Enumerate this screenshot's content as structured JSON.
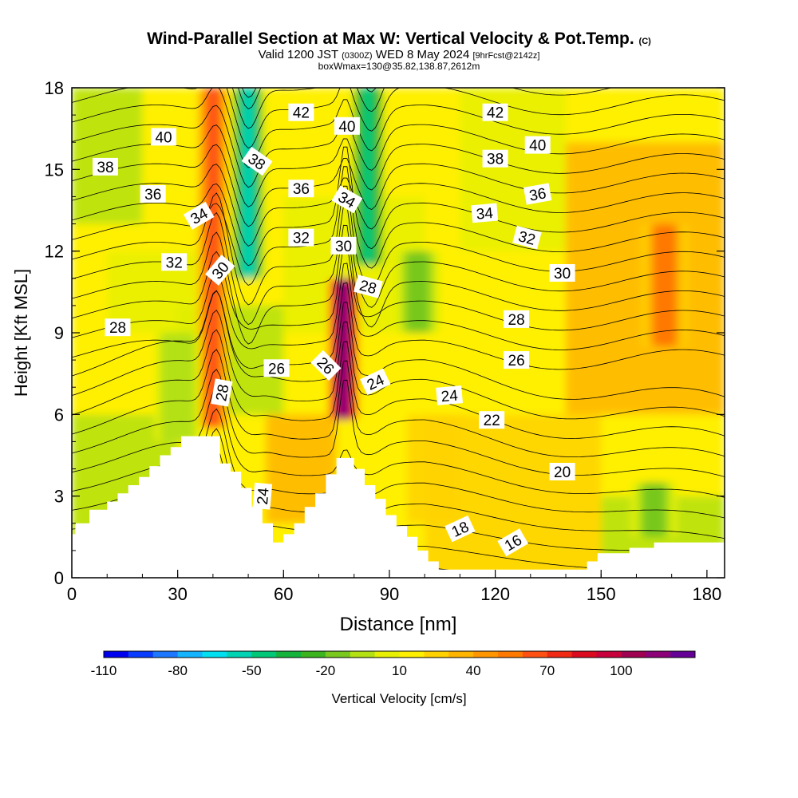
{
  "header": {
    "title": "Wind-Parallel Section at Max W: Vertical Velocity & Pot.Temp.",
    "title_mark": "(C)",
    "valid_prefix": "Valid 1200 JST",
    "valid_utc": "(0300Z)",
    "valid_date": "WED 8 May 2024",
    "forecast_info": "[9hrFcst@2142z]",
    "box_info": "boxWmax=130@35.82,138.87,2612m"
  },
  "chart_data": {
    "type": "heatmap",
    "title": "Wind-Parallel Section at Max W: Vertical Velocity & Pot.Temp.",
    "xlabel": "Distance [nm]",
    "ylabel": "Height [Kft MSL]",
    "xlim": [
      0,
      185
    ],
    "ylim": [
      0,
      18
    ],
    "x_ticks": [
      0,
      30,
      60,
      90,
      120,
      150,
      180
    ],
    "y_ticks": [
      0,
      3,
      6,
      9,
      12,
      15,
      18
    ],
    "colorbar": {
      "label": "Vertical Velocity [cm/s]",
      "tick_labels": [
        -110,
        -80,
        -50,
        -20,
        10,
        40,
        70,
        100
      ],
      "colors": [
        "#0000f0",
        "#0a3cff",
        "#1e78ff",
        "#14b4ff",
        "#00e0f0",
        "#00d2b4",
        "#00c878",
        "#14b43c",
        "#3cb41e",
        "#78c81e",
        "#b4e114",
        "#e6f000",
        "#fff000",
        "#ffd200",
        "#ffb400",
        "#ff9600",
        "#ff7800",
        "#ff5014",
        "#f02814",
        "#dc0a1e",
        "#c8003c",
        "#a00050",
        "#8c0078",
        "#640096"
      ]
    },
    "terrain_nm_kft": [
      [
        0,
        1.6
      ],
      [
        1,
        1.6
      ],
      [
        1,
        2
      ],
      [
        5,
        2
      ],
      [
        5,
        2.5
      ],
      [
        10,
        2.5
      ],
      [
        10,
        2.8
      ],
      [
        13,
        2.8
      ],
      [
        13,
        3.1
      ],
      [
        16,
        3.1
      ],
      [
        16,
        3.4
      ],
      [
        19,
        3.4
      ],
      [
        19,
        3.7
      ],
      [
        22,
        3.7
      ],
      [
        22,
        4.1
      ],
      [
        25,
        4.1
      ],
      [
        25,
        4.5
      ],
      [
        28,
        4.5
      ],
      [
        28,
        4.8
      ],
      [
        31,
        4.8
      ],
      [
        31,
        5.2
      ],
      [
        42,
        5.2
      ],
      [
        42,
        4.2
      ],
      [
        45,
        4.2
      ],
      [
        45,
        3.9
      ],
      [
        48,
        3.9
      ],
      [
        48,
        3.3
      ],
      [
        51,
        3.3
      ],
      [
        51,
        2.6
      ],
      [
        54,
        2.6
      ],
      [
        54,
        2
      ],
      [
        57,
        2
      ],
      [
        57,
        1.3
      ],
      [
        60,
        1.3
      ],
      [
        60,
        1.6
      ],
      [
        63,
        1.6
      ],
      [
        63,
        2
      ],
      [
        66,
        2
      ],
      [
        66,
        2.6
      ],
      [
        69,
        2.6
      ],
      [
        69,
        3.1
      ],
      [
        72,
        3.1
      ],
      [
        72,
        3.8
      ],
      [
        75,
        3.8
      ],
      [
        75,
        4.4
      ],
      [
        80,
        4.4
      ],
      [
        80,
        4
      ],
      [
        83,
        4
      ],
      [
        83,
        3.4
      ],
      [
        86,
        3.4
      ],
      [
        86,
        2.9
      ],
      [
        89,
        2.9
      ],
      [
        89,
        2.3
      ],
      [
        92,
        2.3
      ],
      [
        92,
        1.9
      ],
      [
        95,
        1.9
      ],
      [
        95,
        1.5
      ],
      [
        98,
        1.5
      ],
      [
        98,
        1
      ],
      [
        101,
        1
      ],
      [
        101,
        0.6
      ],
      [
        104,
        0.6
      ],
      [
        104,
        0.3
      ],
      [
        146,
        0.3
      ],
      [
        146,
        0.6
      ],
      [
        149,
        0.6
      ],
      [
        149,
        0.9
      ],
      [
        158,
        0.9
      ],
      [
        158,
        1.1
      ],
      [
        165,
        1.1
      ],
      [
        165,
        1.3
      ],
      [
        185,
        1.3
      ]
    ],
    "w_features_cm_s": [
      {
        "x_nm": 40,
        "top_kft": 18,
        "bottom_kft": 5.5,
        "value": 55
      },
      {
        "x_nm": 50,
        "top_kft": 18,
        "bottom_kft": 11,
        "value": -70
      },
      {
        "x_nm": 77,
        "top_kft": 11,
        "bottom_kft": 5.8,
        "value": 100
      },
      {
        "x_nm": 84,
        "top_kft": 18,
        "bottom_kft": 11.5,
        "value": -60
      },
      {
        "x_nm": 168,
        "top_kft": 13,
        "bottom_kft": 8.5,
        "value": 40
      },
      {
        "x_nm": 98,
        "top_kft": 12,
        "bottom_kft": 9,
        "value": -22
      },
      {
        "x_nm": 30,
        "top_kft": 9,
        "bottom_kft": 5,
        "value": -20
      },
      {
        "x_nm": 165,
        "top_kft": 3.5,
        "bottom_kft": 1.5,
        "value": -25
      }
    ],
    "theta_levels": [
      16,
      17,
      18,
      19,
      20,
      21,
      22,
      23,
      24,
      25,
      26,
      27,
      28,
      29,
      30,
      31,
      32,
      33,
      34,
      35,
      36,
      37,
      38,
      39,
      40,
      41,
      42,
      43
    ],
    "theta_labels": [
      {
        "text": "42",
        "x": 65,
        "y": 17.1,
        "rot": 0
      },
      {
        "text": "42",
        "x": 120,
        "y": 17.1,
        "rot": 0
      },
      {
        "text": "40",
        "x": 26,
        "y": 16.2,
        "rot": 0
      },
      {
        "text": "40",
        "x": 78,
        "y": 16.6,
        "rot": 0
      },
      {
        "text": "40",
        "x": 132,
        "y": 15.9,
        "rot": 0
      },
      {
        "text": "38",
        "x": 9.5,
        "y": 15.1,
        "rot": 0
      },
      {
        "text": "38",
        "x": 52.5,
        "y": 15.3,
        "rot": 35
      },
      {
        "text": "38",
        "x": 120,
        "y": 15.4,
        "rot": 0
      },
      {
        "text": "36",
        "x": 23,
        "y": 14.1,
        "rot": 0
      },
      {
        "text": "36",
        "x": 65,
        "y": 14.3,
        "rot": 0
      },
      {
        "text": "36",
        "x": 132,
        "y": 14.1,
        "rot": -10
      },
      {
        "text": "34",
        "x": 36,
        "y": 13.3,
        "rot": -30
      },
      {
        "text": "34",
        "x": 78,
        "y": 13.9,
        "rot": 30
      },
      {
        "text": "34",
        "x": 117,
        "y": 13.4,
        "rot": -5
      },
      {
        "text": "32",
        "x": 29,
        "y": 11.6,
        "rot": 0
      },
      {
        "text": "32",
        "x": 65,
        "y": 12.5,
        "rot": 0
      },
      {
        "text": "32",
        "x": 129,
        "y": 12.5,
        "rot": 15
      },
      {
        "text": "30",
        "x": 42,
        "y": 11.3,
        "rot": -50
      },
      {
        "text": "30",
        "x": 77,
        "y": 12.2,
        "rot": 0
      },
      {
        "text": "30",
        "x": 139,
        "y": 11.2,
        "rot": 0
      },
      {
        "text": "28",
        "x": 13,
        "y": 9.2,
        "rot": 0
      },
      {
        "text": "28",
        "x": 84,
        "y": 10.7,
        "rot": 15
      },
      {
        "text": "28",
        "x": 126,
        "y": 9.5,
        "rot": 0
      },
      {
        "text": "28",
        "x": 42.5,
        "y": 6.8,
        "rot": -80
      },
      {
        "text": "26",
        "x": 58,
        "y": 7.7,
        "rot": 0
      },
      {
        "text": "26",
        "x": 72,
        "y": 7.8,
        "rot": 45
      },
      {
        "text": "26",
        "x": 126,
        "y": 8.0,
        "rot": 0
      },
      {
        "text": "24",
        "x": 86,
        "y": 7.2,
        "rot": -25
      },
      {
        "text": "24",
        "x": 107,
        "y": 6.7,
        "rot": -5
      },
      {
        "text": "24",
        "x": 54,
        "y": 3.0,
        "rot": -85
      },
      {
        "text": "22",
        "x": 119,
        "y": 5.8,
        "rot": 0
      },
      {
        "text": "20",
        "x": 139,
        "y": 3.9,
        "rot": 0
      },
      {
        "text": "18",
        "x": 110,
        "y": 1.8,
        "rot": -25
      },
      {
        "text": "16",
        "x": 125,
        "y": 1.3,
        "rot": -30
      }
    ]
  }
}
